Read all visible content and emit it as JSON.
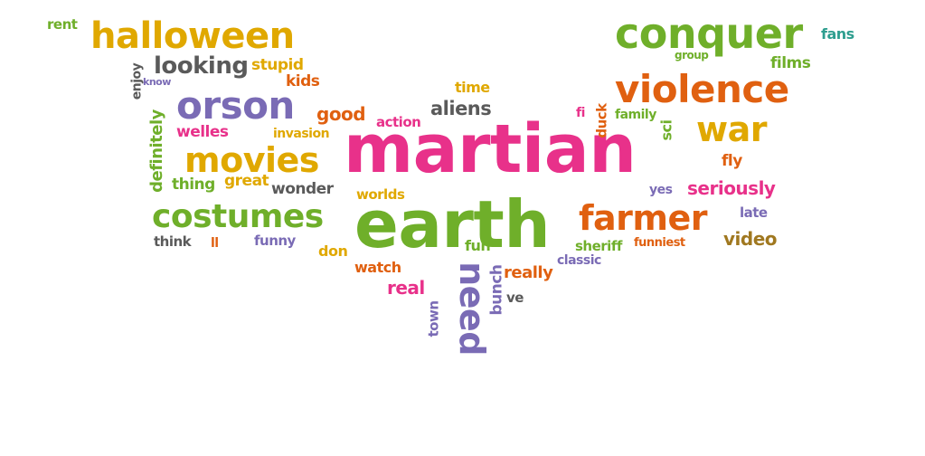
{
  "palette": {
    "orange": "#E06010",
    "green": "#6FAF2A",
    "magenta": "#E8318A",
    "purple": "#7A6BB5",
    "gold": "#E0A800",
    "gray": "#5A5A5A"
  },
  "words": [
    {
      "text": "martian",
      "color": "#E8318A"
    },
    {
      "text": "earth",
      "color": "#6FAF2A"
    },
    {
      "text": "halloween",
      "color": "#E0A800"
    },
    {
      "text": "conquer",
      "color": "#6FAF2A"
    },
    {
      "text": "violence",
      "color": "#E06010"
    },
    {
      "text": "orson",
      "color": "#7A6BB5"
    },
    {
      "text": "movies",
      "color": "#E0A800"
    },
    {
      "text": "costumes",
      "color": "#6FAF2A"
    },
    {
      "text": "farmer",
      "color": "#E06010"
    },
    {
      "text": "war",
      "color": "#E0A800"
    },
    {
      "text": "need",
      "color": "#7A6BB5"
    },
    {
      "text": "looking",
      "color": "#5A5A5A"
    },
    {
      "text": "rent",
      "color": "#6FAF2A"
    },
    {
      "text": "fans",
      "color": "#2E9E8F"
    },
    {
      "text": "films",
      "color": "#6FAF2A"
    },
    {
      "text": "group",
      "color": "#6FAF2A"
    },
    {
      "text": "stupid",
      "color": "#E0A800"
    },
    {
      "text": "kids",
      "color": "#E06010"
    },
    {
      "text": "know",
      "color": "#7A6BB5"
    },
    {
      "text": "enjoy",
      "color": "#5A5A5A"
    },
    {
      "text": "definitely",
      "color": "#6FAF2A"
    },
    {
      "text": "good",
      "color": "#E06010"
    },
    {
      "text": "welles",
      "color": "#E8318A"
    },
    {
      "text": "invasion",
      "color": "#E0A800"
    },
    {
      "text": "action",
      "color": "#E8318A"
    },
    {
      "text": "aliens",
      "color": "#5A5A5A"
    },
    {
      "text": "time",
      "color": "#E0A800"
    },
    {
      "text": "fi",
      "color": "#E8318A"
    },
    {
      "text": "duck",
      "color": "#E06010"
    },
    {
      "text": "family",
      "color": "#6FAF2A"
    },
    {
      "text": "sci",
      "color": "#6FAF2A"
    },
    {
      "text": "thing",
      "color": "#6FAF2A"
    },
    {
      "text": "great",
      "color": "#E0A800"
    },
    {
      "text": "wonder",
      "color": "#5A5A5A"
    },
    {
      "text": "worlds",
      "color": "#E0A800"
    },
    {
      "text": "fly",
      "color": "#E06010"
    },
    {
      "text": "yes",
      "color": "#7A6BB5"
    },
    {
      "text": "seriously",
      "color": "#E8318A"
    },
    {
      "text": "late",
      "color": "#7A6BB5"
    },
    {
      "text": "think",
      "color": "#5A5A5A"
    },
    {
      "text": "ll",
      "color": "#E06010"
    },
    {
      "text": "funny",
      "color": "#7A6BB5"
    },
    {
      "text": "don",
      "color": "#E0A800"
    },
    {
      "text": "fun",
      "color": "#6FAF2A"
    },
    {
      "text": "sheriff",
      "color": "#6FAF2A"
    },
    {
      "text": "funniest",
      "color": "#E06010"
    },
    {
      "text": "video",
      "color": "#A07820"
    },
    {
      "text": "watch",
      "color": "#E06010"
    },
    {
      "text": "bunch",
      "color": "#7A6BB5"
    },
    {
      "text": "really",
      "color": "#E06010"
    },
    {
      "text": "classic",
      "color": "#7A6BB5"
    },
    {
      "text": "real",
      "color": "#E8318A"
    },
    {
      "text": "ve",
      "color": "#5A5A5A"
    },
    {
      "text": "town",
      "color": "#7A6BB5"
    }
  ]
}
